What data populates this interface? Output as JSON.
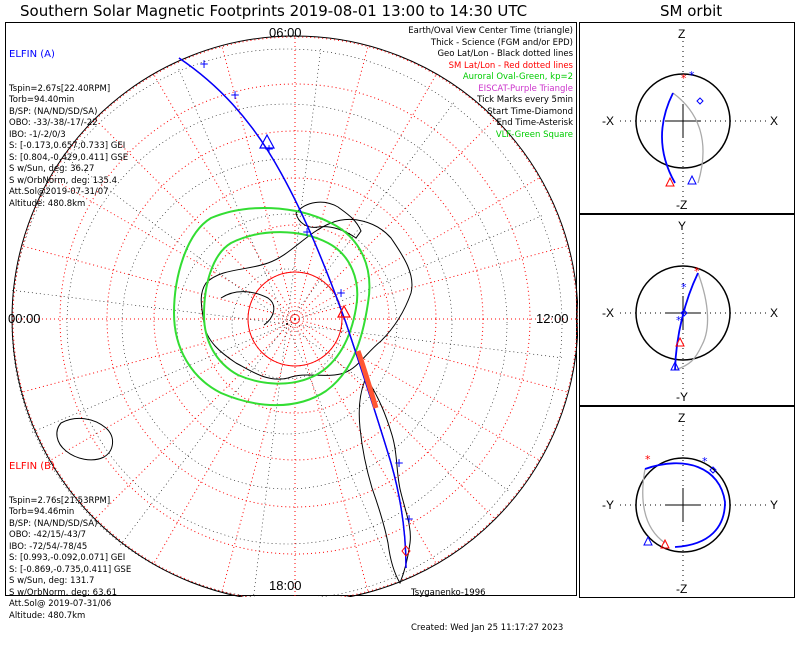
{
  "header": {
    "title": "Southern Solar Magnetic Footprints 2019-08-01 13:00 to 14:30 UTC",
    "orbit_title": "SM orbit"
  },
  "map": {
    "time_labels": {
      "top": "06:00",
      "left": "00:00",
      "right": "12:00",
      "bottom": "18:00"
    },
    "legend": [
      {
        "text": "Earth/Oval View Center Time (triangle)",
        "color": "#000000"
      },
      {
        "text": "Thick - Science (FGM and/or EPD)",
        "color": "#000000"
      },
      {
        "text": "Geo Lat/Lon - Black dotted lines",
        "color": "#000000"
      },
      {
        "text": "SM Lat/Lon - Red dotted lines",
        "color": "#ff0000"
      },
      {
        "text": "Auroral Oval-Green, kp=2",
        "color": "#00cc00"
      },
      {
        "text": "EISCAT-Purple Triangle",
        "color": "#cc33cc"
      },
      {
        "text": "Tick Marks every 5min",
        "color": "#000000"
      },
      {
        "text": "Start Time-Diamond",
        "color": "#000000"
      },
      {
        "text": "End Time-Asterisk",
        "color": "#000000"
      },
      {
        "text": "VLF-Green Square",
        "color": "#00cc00"
      }
    ],
    "elfin_a": {
      "name": "ELFIN (A)",
      "color": "#0000ff",
      "lines": [
        "Tspin=2.67s[22.40RPM]",
        "Torb=94.40min",
        "B/SP: (NA/ND/SD/SA)",
        "OBO: -33/-38/-17/-22",
        "IBO: -1/-2/0/3",
        "S: [-0.173,0.657,0.733] GEI",
        "S: [0.804,-0.429,0.411] GSE",
        "S w/Sun, deg: 36.27",
        "S w/OrbNorm, deg: 135.4",
        "Att.Sol@2019-07-31/07",
        "Altitude: 480.8km"
      ]
    },
    "elfin_b": {
      "name": "ELFIN (B)",
      "color": "#ff0000",
      "lines": [
        "Tspin=2.76s[21.53RPM]",
        "Torb=94.46min",
        "B/SP: (NA/ND/SD/SA)",
        "OBO: -42/15/-43/7",
        "IBO: -72/54/-78/45",
        "S: [0.993,-0.092,0.071] GEI",
        "S: [-0.869,-0.735,0.411] GSE",
        "S w/Sun, deg: 131.7",
        "S w/OrbNorm, deg: 63.61",
        "Att.Sol@ 2019-07-31/06",
        "Altitude: 480.7km"
      ]
    },
    "credit": "Tsyganenko-1996",
    "created": "Created: Wed Jan 25 11:17:27 2023"
  },
  "orbits": [
    {
      "left": "-X",
      "right": "X",
      "top": "Z",
      "bottom": "-Z"
    },
    {
      "left": "-X",
      "right": "X",
      "top": "Y",
      "bottom": "-Y"
    },
    {
      "left": "-Y",
      "right": "Y",
      "top": "Z",
      "bottom": "-Z"
    }
  ],
  "chart_data": [
    {
      "type": "scatter",
      "title": "Southern Solar Magnetic Footprints 2019-08-01 13:00 to 14:30 UTC",
      "xlabel": "",
      "ylabel": "",
      "series": [
        {
          "name": "ELFIN (A)",
          "values": []
        },
        {
          "name": "ELFIN (B)",
          "values": []
        }
      ]
    },
    {
      "type": "line",
      "title": "SM orbit",
      "xlabel": "X",
      "ylabel": "Z"
    },
    {
      "type": "line",
      "title": "",
      "xlabel": "X",
      "ylabel": "Y"
    },
    {
      "type": "line",
      "title": "",
      "xlabel": "Y",
      "ylabel": "Z"
    }
  ]
}
